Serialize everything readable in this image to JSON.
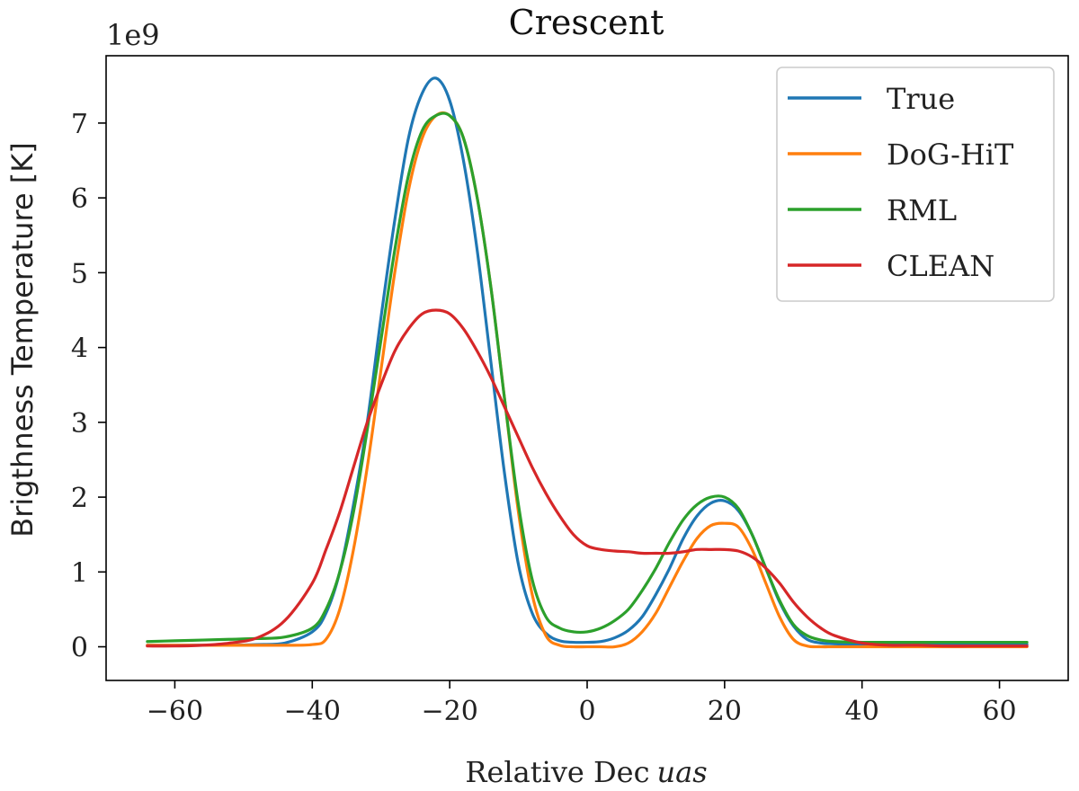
{
  "chart_data": {
    "type": "line",
    "title": "Crescent",
    "xlabel": "Relative Dec",
    "xlabel_italic": "uas",
    "ylabel": "Brigthness Temperature [K]",
    "y_multiplier": "1e9",
    "xlim": [
      -70,
      70
    ],
    "ylim": [
      -0.45,
      7.9
    ],
    "xticks": [
      -60,
      -40,
      -20,
      0,
      20,
      40,
      60
    ],
    "yticks": [
      0,
      1,
      2,
      3,
      4,
      5,
      6,
      7
    ],
    "xtick_labels": [
      "−60",
      "−40",
      "−20",
      "0",
      "20",
      "40",
      "60"
    ],
    "ytick_labels": [
      "0",
      "1",
      "2",
      "3",
      "4",
      "5",
      "6",
      "7"
    ],
    "grid": false,
    "legend_position": "top-right",
    "x": [
      -64,
      -60,
      -56,
      -52,
      -48,
      -44,
      -40,
      -38,
      -36,
      -34,
      -32,
      -30,
      -28,
      -26,
      -24,
      -22,
      -20,
      -18,
      -16,
      -14,
      -12,
      -10,
      -8,
      -6,
      -4,
      -2,
      0,
      2,
      4,
      6,
      8,
      10,
      12,
      14,
      16,
      18,
      20,
      22,
      24,
      26,
      28,
      30,
      32,
      34,
      36,
      40,
      44,
      48,
      52,
      56,
      60,
      64
    ],
    "series": [
      {
        "name": "True",
        "color": "#1f77b4",
        "values": [
          0.02,
          0.02,
          0.02,
          0.02,
          0.03,
          0.05,
          0.2,
          0.45,
          1.0,
          1.9,
          3.0,
          4.4,
          5.7,
          6.8,
          7.4,
          7.6,
          7.3,
          6.5,
          5.3,
          3.8,
          2.3,
          1.1,
          0.45,
          0.18,
          0.08,
          0.06,
          0.06,
          0.07,
          0.12,
          0.22,
          0.4,
          0.7,
          1.05,
          1.45,
          1.75,
          1.92,
          1.95,
          1.82,
          1.5,
          1.05,
          0.6,
          0.28,
          0.1,
          0.05,
          0.04,
          0.03,
          0.03,
          0.03,
          0.03,
          0.03,
          0.03,
          0.03
        ]
      },
      {
        "name": "DoG-HiT",
        "color": "#ff7f0e",
        "values": [
          0.02,
          0.02,
          0.02,
          0.02,
          0.02,
          0.02,
          0.03,
          0.1,
          0.5,
          1.3,
          2.4,
          3.7,
          5.0,
          6.1,
          6.8,
          7.1,
          7.1,
          6.8,
          6.0,
          4.8,
          3.3,
          1.8,
          0.7,
          0.15,
          0.02,
          0.0,
          0.0,
          0.0,
          0.0,
          0.05,
          0.2,
          0.45,
          0.8,
          1.15,
          1.45,
          1.62,
          1.65,
          1.6,
          1.3,
          0.85,
          0.4,
          0.1,
          0.01,
          0.0,
          0.0,
          0.0,
          0.0,
          0.0,
          0.0,
          0.0,
          0.0,
          0.0
        ]
      },
      {
        "name": "RML",
        "color": "#2ca02c",
        "values": [
          0.07,
          0.08,
          0.09,
          0.1,
          0.11,
          0.13,
          0.25,
          0.5,
          1.0,
          1.8,
          2.9,
          4.1,
          5.3,
          6.3,
          6.9,
          7.1,
          7.1,
          6.8,
          6.0,
          4.8,
          3.3,
          1.9,
          0.9,
          0.4,
          0.25,
          0.2,
          0.2,
          0.25,
          0.35,
          0.5,
          0.75,
          1.05,
          1.4,
          1.7,
          1.9,
          2.0,
          2.0,
          1.85,
          1.5,
          1.05,
          0.62,
          0.3,
          0.15,
          0.09,
          0.07,
          0.06,
          0.06,
          0.06,
          0.06,
          0.06,
          0.06,
          0.06
        ]
      },
      {
        "name": "CLEAN",
        "color": "#d62728",
        "values": [
          0.01,
          0.01,
          0.02,
          0.05,
          0.12,
          0.35,
          0.85,
          1.3,
          1.8,
          2.4,
          3.0,
          3.5,
          3.95,
          4.25,
          4.45,
          4.5,
          4.45,
          4.25,
          3.95,
          3.6,
          3.2,
          2.8,
          2.4,
          2.05,
          1.75,
          1.5,
          1.35,
          1.3,
          1.28,
          1.27,
          1.25,
          1.25,
          1.25,
          1.27,
          1.3,
          1.3,
          1.3,
          1.28,
          1.2,
          1.05,
          0.85,
          0.6,
          0.4,
          0.25,
          0.15,
          0.05,
          0.02,
          0.02,
          0.01,
          0.01,
          0.01,
          0.01
        ]
      }
    ]
  }
}
